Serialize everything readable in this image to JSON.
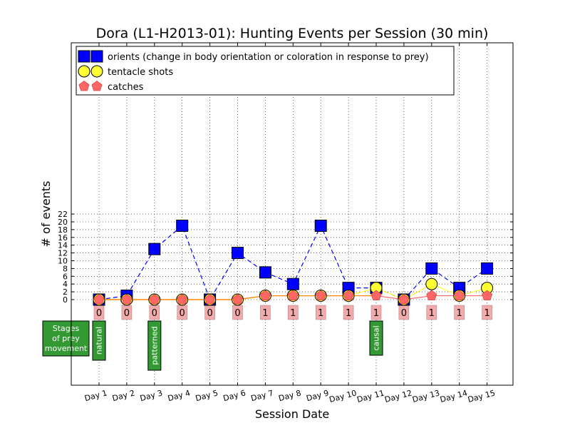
{
  "chart_data": {
    "type": "line",
    "title": "Dora (L1-H2013-01): Hunting Events per Session (30 min)",
    "xlabel": "Session Date",
    "ylabel": "# of events",
    "categories": [
      "Day 1",
      "Day 2",
      "Day 3",
      "Day 4",
      "Day 5",
      "Day 6",
      "Day 7",
      "Day 8",
      "Day 9",
      "Day 10",
      "Day 11",
      "Day 12",
      "Day 13",
      "Day 14",
      "Day 15"
    ],
    "yticks": [
      0,
      2,
      4,
      6,
      8,
      10,
      12,
      14,
      16,
      18,
      20,
      22
    ],
    "grid": true,
    "legend_position": "top-left",
    "series": [
      {
        "name": "orients (change in body orientation or coloration in response to prey)",
        "marker": "square",
        "color": "#0000ff",
        "line_style": "dashed",
        "values": [
          0,
          1,
          13,
          19,
          0,
          12,
          7,
          4,
          19,
          3,
          3,
          0,
          8,
          3,
          8
        ]
      },
      {
        "name": "tentacle shots",
        "marker": "circle",
        "color": "#ffff33",
        "line_style": "solid",
        "values": [
          0,
          0,
          0,
          0,
          0,
          0,
          1,
          1,
          1,
          1,
          3,
          0,
          4,
          1,
          3
        ]
      },
      {
        "name": "catches",
        "marker": "pentagon",
        "color": "#ff6666",
        "line_style": "solid",
        "values": [
          0,
          0,
          0,
          0,
          0,
          0,
          1,
          1,
          1,
          1,
          1,
          0,
          1,
          1,
          1
        ]
      }
    ],
    "catch_counts": [
      "0",
      "0",
      "0",
      "0",
      "0",
      "0",
      "1",
      "1",
      "1",
      "1",
      "1",
      "0",
      "1",
      "1",
      "1"
    ],
    "stages_label": "Stages of prey movement",
    "stages_label_lines": [
      "Stages",
      "of prey",
      "movement"
    ],
    "stages": [
      {
        "label": "natural",
        "day": "Day 1"
      },
      {
        "label": "patterned",
        "day": "Day 3"
      },
      {
        "label": "causal",
        "day": "Day 11"
      }
    ],
    "colors": {
      "orients": "#0000ff",
      "tentacle_shots": "#ffff33",
      "catches": "#ff6666",
      "count_box": "#f2aaaa",
      "stage_box": "#339933",
      "connector": "#ff8800"
    }
  }
}
